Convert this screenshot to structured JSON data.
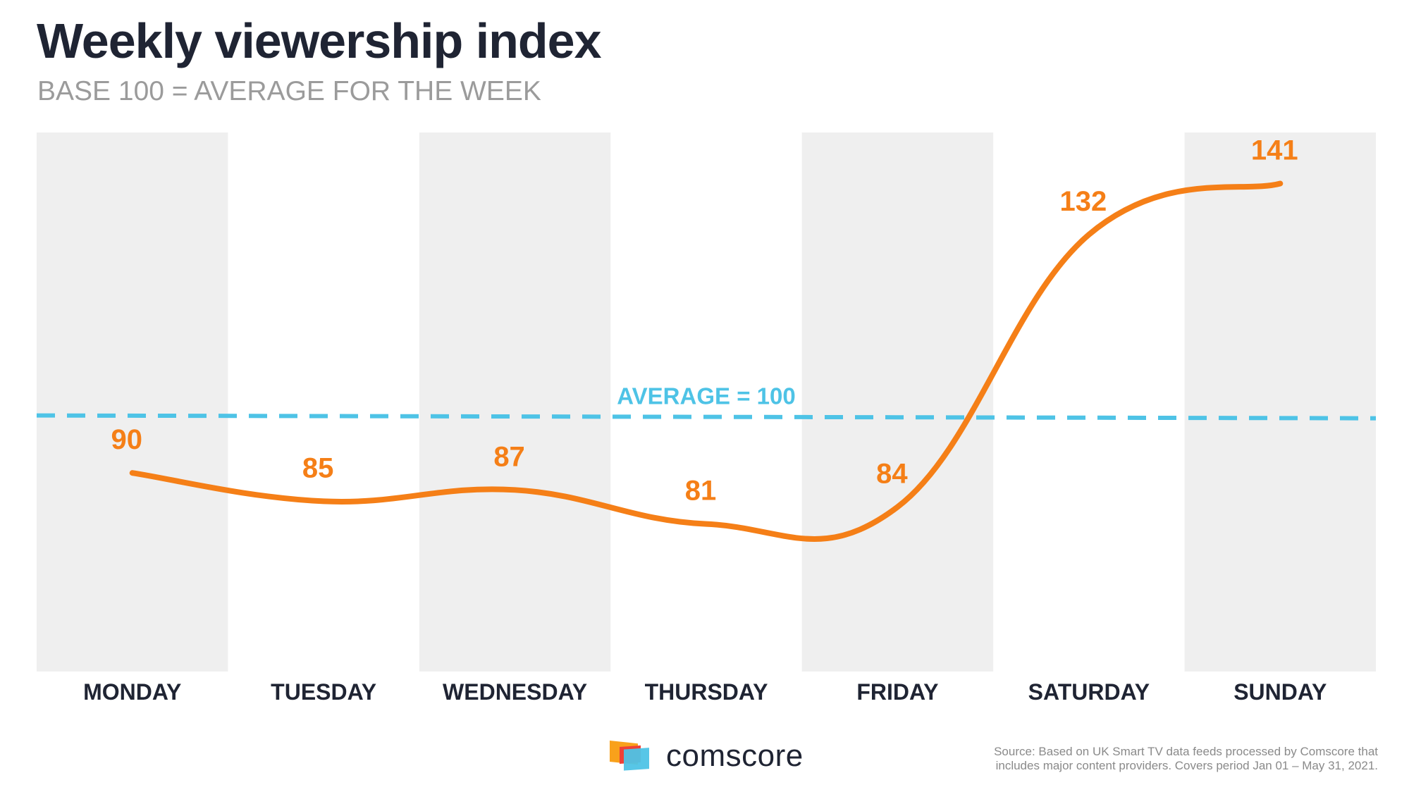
{
  "header": {
    "title": "Weekly viewership index",
    "subtitle": "BASE 100 = AVERAGE FOR THE WEEK"
  },
  "chart_data": {
    "type": "line",
    "title": "Weekly viewership index",
    "subtitle": "BASE 100 = AVERAGE FOR THE WEEK",
    "categories": [
      "MONDAY",
      "TUESDAY",
      "WEDNESDAY",
      "THURSDAY",
      "FRIDAY",
      "SATURDAY",
      "SUNDAY"
    ],
    "series": [
      {
        "values": [
          90,
          85,
          87,
          81,
          84,
          132,
          141
        ],
        "color": "#f57f17"
      }
    ],
    "data_labels": [
      "90",
      "85",
      "87",
      "81",
      "84",
      "132",
      "141"
    ],
    "reference_line": {
      "value": 100,
      "label": "AVERAGE = 100",
      "color": "#4ec3e6",
      "style": "dashed"
    },
    "band_color": "#efefef",
    "shaded_categories": [
      "MONDAY",
      "WEDNESDAY",
      "FRIDAY",
      "SUNDAY"
    ],
    "ylim": [
      55,
      150
    ],
    "grid": false,
    "legend": "none",
    "xlabel": "",
    "ylabel": ""
  },
  "footer": {
    "logo_text": "comscore",
    "source_line1": "Source: Based on UK Smart TV data feeds processed by Comscore that",
    "source_line2": "includes major content providers. Covers period Jan 01 – May 31, 2021.",
    "logo_colors": [
      "#f9a11b",
      "#ef4136",
      "#4ec3e6"
    ]
  }
}
